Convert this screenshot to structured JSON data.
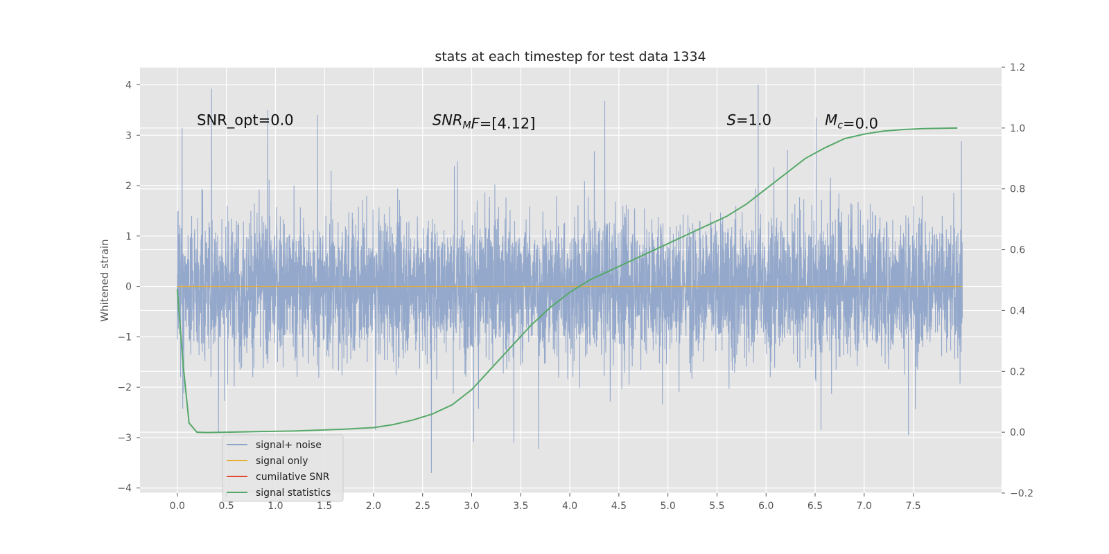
{
  "chart_data": {
    "type": "line",
    "title": "stats at each timestep for test data 1334",
    "ylabel": "Whitened strain",
    "xlim": [
      -0.38,
      8.4
    ],
    "ylim": [
      -4.1,
      4.35
    ],
    "y2lim": [
      -0.2,
      1.2
    ],
    "xticks": [
      "0.0",
      "0.5",
      "1.0",
      "1.5",
      "2.0",
      "2.5",
      "3.0",
      "3.5",
      "4.0",
      "4.5",
      "5.0",
      "5.5",
      "6.0",
      "6.5",
      "7.0",
      "7.5"
    ],
    "yticks": [
      "4",
      "3",
      "2",
      "1",
      "0",
      "−1",
      "−2",
      "−3",
      "−4"
    ],
    "y2ticks": [
      "1.2",
      "1.0",
      "0.8",
      "0.6",
      "0.4",
      "0.2",
      "0.0",
      "−0.2"
    ],
    "grid": true,
    "legend_position": "lower-left",
    "annotations": [
      {
        "text": "SNR_opt=0.0",
        "x": 0.2,
        "y": 3.2
      },
      {
        "text": "SNR_MF=[4.12]",
        "x": 2.6,
        "y": 3.2
      },
      {
        "text": "S=1.0",
        "x": 5.6,
        "y": 3.2
      },
      {
        "text": "M_c=0.0",
        "x": 6.6,
        "y": 3.2
      }
    ],
    "series": [
      {
        "name": "signal+ noise",
        "color": "#8fa4c9",
        "axis": "left",
        "x_range": [
          0.0,
          8.0
        ],
        "typical_band": [
          -1.1,
          1.1
        ],
        "spikes": [
          {
            "x": 0.35,
            "y": 3.92
          },
          {
            "x": 0.92,
            "y": 3.5
          },
          {
            "x": 1.43,
            "y": 3.4
          },
          {
            "x": 0.05,
            "y": 3.15
          },
          {
            "x": 5.92,
            "y": 4.0
          },
          {
            "x": 6.51,
            "y": 3.35
          },
          {
            "x": 7.99,
            "y": 2.88
          },
          {
            "x": 2.59,
            "y": -3.7
          },
          {
            "x": 3.68,
            "y": -3.22
          },
          {
            "x": 3.02,
            "y": -3.08
          },
          {
            "x": 3.43,
            "y": -3.1
          },
          {
            "x": 0.42,
            "y": -2.9
          },
          {
            "x": 6.56,
            "y": -2.85
          },
          {
            "x": 7.45,
            "y": -2.95
          },
          {
            "x": 2.02,
            "y": -2.85
          }
        ]
      },
      {
        "name": "signal only",
        "color": "#e5ae38",
        "axis": "left",
        "x": [
          0.0,
          8.0
        ],
        "y": [
          0.0,
          0.0
        ]
      },
      {
        "name": "cumilative SNR",
        "color": "#e24a33",
        "axis": "left",
        "x": [],
        "y": []
      },
      {
        "name": "signal statistics",
        "color": "#55a868",
        "axis": "right",
        "x": [
          0.0,
          0.06,
          0.12,
          0.2,
          0.3,
          0.5,
          0.8,
          1.2,
          1.7,
          2.0,
          2.2,
          2.4,
          2.6,
          2.8,
          3.0,
          3.2,
          3.4,
          3.6,
          3.8,
          4.0,
          4.2,
          4.4,
          4.6,
          4.8,
          5.0,
          5.2,
          5.4,
          5.6,
          5.8,
          6.0,
          6.2,
          6.4,
          6.6,
          6.8,
          7.0,
          7.2,
          7.4,
          7.6,
          7.8,
          7.95
        ],
        "y": [
          0.47,
          0.22,
          0.03,
          0.0,
          -0.001,
          0.0,
          0.002,
          0.004,
          0.01,
          0.015,
          0.025,
          0.04,
          0.06,
          0.09,
          0.14,
          0.21,
          0.28,
          0.35,
          0.41,
          0.46,
          0.5,
          0.53,
          0.56,
          0.59,
          0.62,
          0.65,
          0.68,
          0.71,
          0.75,
          0.8,
          0.85,
          0.9,
          0.935,
          0.965,
          0.98,
          0.99,
          0.995,
          0.998,
          0.999,
          1.0
        ]
      }
    ]
  }
}
